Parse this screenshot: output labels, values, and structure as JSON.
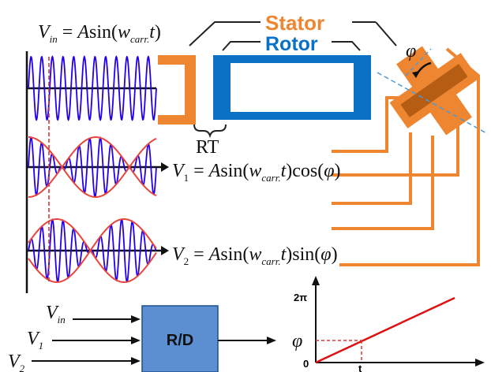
{
  "colors": {
    "stator": "#ee8631",
    "rotor": "#0a71c4",
    "wave": "#2200ee",
    "envelope": "#e8453c",
    "rd_box": "#5b8fd1",
    "dashed_marker": "#d33",
    "ramp": "#dd1111",
    "axis": "#111111"
  },
  "labels": {
    "stator": "Stator",
    "rotor": "Rotor",
    "rt": "RT",
    "phi": "φ",
    "rd_box": "R/D"
  },
  "equations": {
    "vin": {
      "lhs_main": "V",
      "lhs_sub": "in",
      "eq": " = ",
      "a": "A",
      "sin": "sin(",
      "w": "w",
      "w_sub": "carr.",
      "t": "t",
      "close": ")"
    },
    "v1": {
      "lhs_main": "V",
      "lhs_sub": "1",
      "eq": " = ",
      "a": "A",
      "sin": "sin(",
      "w": "w",
      "w_sub": "carr.",
      "t": "t",
      "close": ")",
      "trig": "cos(",
      "phi": "φ",
      "end": ")"
    },
    "v2": {
      "lhs_main": "V",
      "lhs_sub": "2",
      "eq": " = ",
      "a": "A",
      "sin": "sin(",
      "w": "w",
      "w_sub": "carr.",
      "t": "t",
      "close": ")",
      "trig": "sin(",
      "phi": "φ",
      "end": ")"
    }
  },
  "rd_inputs": [
    {
      "main": "V",
      "sub": "in"
    },
    {
      "main": "V",
      "sub": "1"
    },
    {
      "main": "V",
      "sub": "2"
    }
  ],
  "ramp_plot": {
    "y_top_label": "2π",
    "y_zero_label": "0",
    "y_phi_label": "φ",
    "x_t_label": "t"
  }
}
